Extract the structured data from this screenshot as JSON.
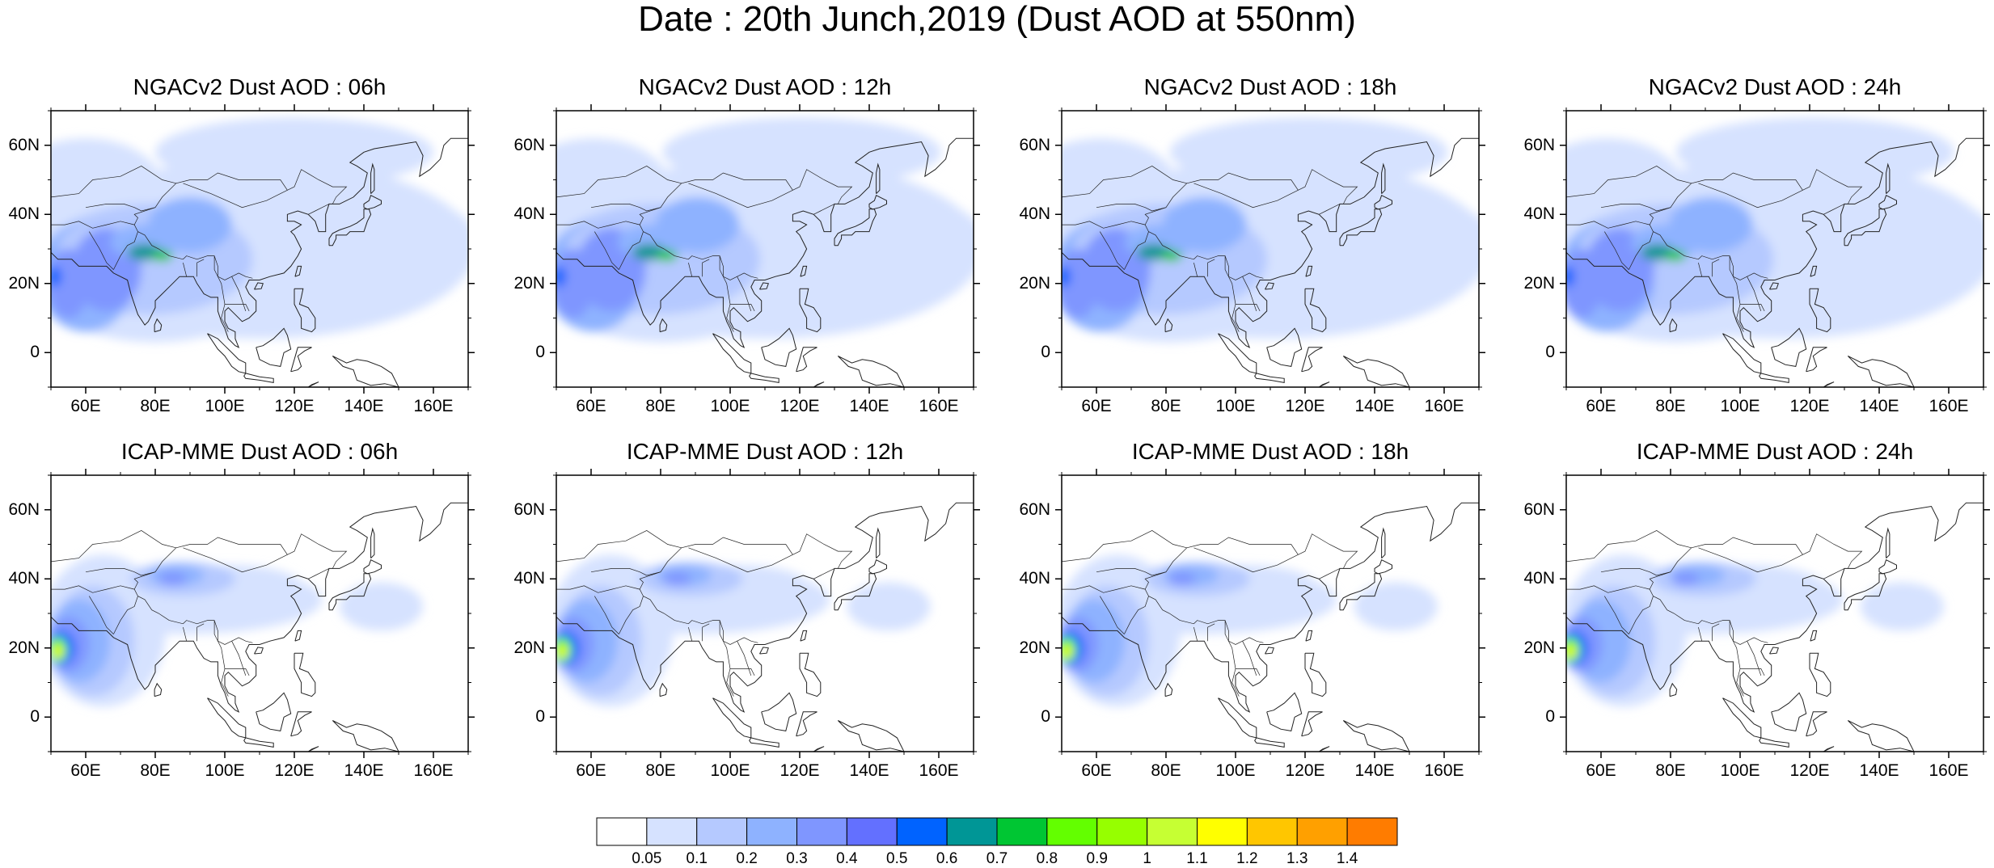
{
  "title": "Date : 20th Junch,2019 (Dust AOD at 550nm)",
  "map": {
    "lon_range": [
      50,
      170
    ],
    "lat_range": [
      -10,
      70
    ],
    "lat_ticks": [
      0,
      20,
      40,
      60
    ],
    "lat_tick_labels": [
      "0",
      "20N",
      "40N",
      "60N"
    ],
    "lon_ticks": [
      60,
      80,
      100,
      120,
      140,
      160
    ],
    "lon_tick_labels": [
      "60E",
      "80E",
      "100E",
      "120E",
      "140E",
      "160E"
    ]
  },
  "panels": [
    {
      "title": "NGACv2 Dust AOD : 06h",
      "model": "NGACv2",
      "hour": 6,
      "row": 0,
      "col": 0
    },
    {
      "title": "NGACv2 Dust AOD : 12h",
      "model": "NGACv2",
      "hour": 12,
      "row": 0,
      "col": 1
    },
    {
      "title": "NGACv2 Dust AOD : 18h",
      "model": "NGACv2",
      "hour": 18,
      "row": 0,
      "col": 2
    },
    {
      "title": "NGACv2 Dust AOD : 24h",
      "model": "NGACv2",
      "hour": 24,
      "row": 0,
      "col": 3
    },
    {
      "title": "ICAP-MME Dust AOD : 06h",
      "model": "ICAP",
      "hour": 6,
      "row": 1,
      "col": 0
    },
    {
      "title": "ICAP-MME Dust AOD : 12h",
      "model": "ICAP",
      "hour": 12,
      "row": 1,
      "col": 1
    },
    {
      "title": "ICAP-MME Dust AOD : 18h",
      "model": "ICAP",
      "hour": 18,
      "row": 1,
      "col": 2
    },
    {
      "title": "ICAP-MME Dust AOD : 24h",
      "model": "ICAP",
      "hour": 24,
      "row": 1,
      "col": 3
    }
  ],
  "colorbar": {
    "labels": [
      "0.05",
      "0.1",
      "0.2",
      "0.3",
      "0.4",
      "0.5",
      "0.6",
      "0.7",
      "0.8",
      "0.9",
      "1",
      "1.1",
      "1.2",
      "1.3",
      "1.4"
    ],
    "colors": [
      "#ffffff",
      "#d6e2ff",
      "#b5c9ff",
      "#8eb2ff",
      "#7f96ff",
      "#6370ff",
      "#0063ff",
      "#009696",
      "#00c633",
      "#63ff00",
      "#96ff00",
      "#c6ff33",
      "#ffff00",
      "#ffc600",
      "#ffa000",
      "#ff7c00",
      "#ff1900"
    ]
  }
}
